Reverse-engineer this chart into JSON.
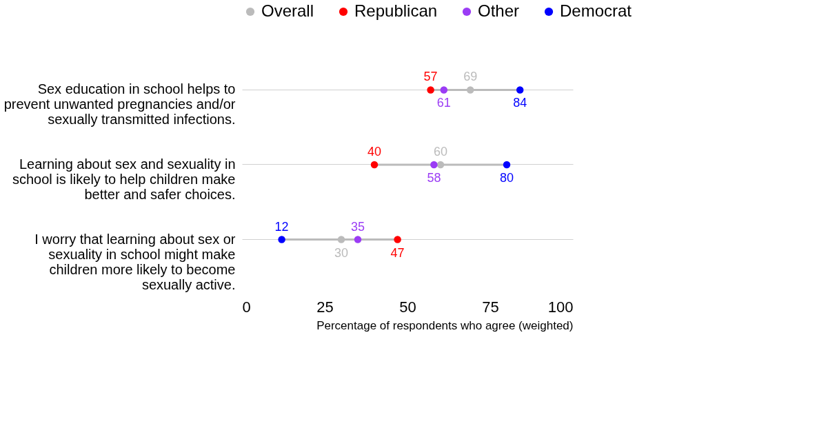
{
  "chart_data": {
    "type": "scatter",
    "orientation": "horizontal",
    "categories": [
      "Sex education in school helps to prevent unwanted pregnancies and/or sexually transmitted infections.",
      "Learning about sex and sexuality in school is likely to help children make better and safer choices.",
      "I worry that learning about sex or sexuality in school might make children more likely to become sexually active."
    ],
    "series": [
      {
        "name": "Overall",
        "color": "#bbbbbb",
        "values": [
          69,
          60,
          30
        ]
      },
      {
        "name": "Republican",
        "color": "#ff0000",
        "values": [
          57,
          40,
          47
        ]
      },
      {
        "name": "Other",
        "color": "#9b3cf5",
        "values": [
          61,
          58,
          35
        ]
      },
      {
        "name": "Democrat",
        "color": "#0000ff",
        "values": [
          84,
          80,
          12
        ]
      }
    ],
    "xlim": [
      0,
      100
    ],
    "xticks": [
      0,
      25,
      50,
      75,
      100
    ],
    "xlabel": "Percentage of respondents who agree (weighted)",
    "grid": "y",
    "legend": "top",
    "marker": "circle",
    "data_labels": true
  }
}
